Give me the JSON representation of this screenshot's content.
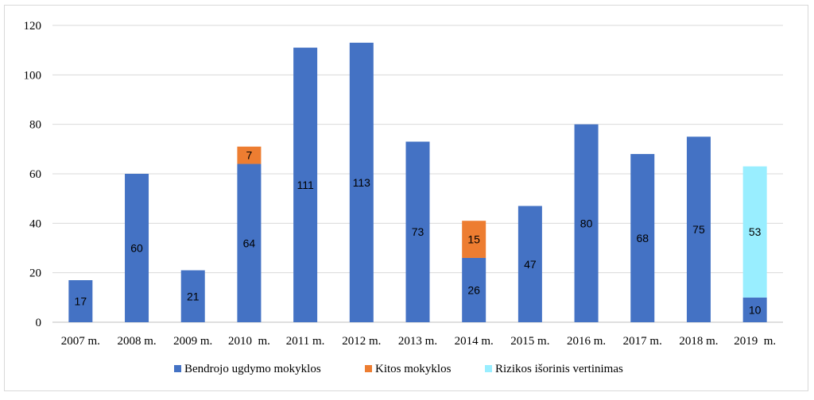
{
  "chart_data": {
    "type": "bar",
    "stacked": true,
    "title": "",
    "xlabel": "",
    "ylabel": "",
    "ylim": [
      0,
      120
    ],
    "yticks": [
      0,
      20,
      40,
      60,
      80,
      100,
      120
    ],
    "grid": true,
    "legend_position": "bottom",
    "categories": [
      "2007 m.",
      "2008 m.",
      "2009 m.",
      "2010  m.",
      "2011 m.",
      "2012 m.",
      "2013 m.",
      "2014 m.",
      "2015 m.",
      "2016 m.",
      "2017 m.",
      "2018 m.",
      "2019  m."
    ],
    "series": [
      {
        "name": "Bendrojo ugdymo mokyklos",
        "color": "#4472c4",
        "values": [
          17,
          60,
          21,
          64,
          111,
          113,
          73,
          26,
          47,
          80,
          68,
          75,
          10
        ]
      },
      {
        "name": "Kitos mokyklos",
        "color": "#ed7d31",
        "values": [
          0,
          0,
          0,
          7,
          0,
          0,
          0,
          15,
          0,
          0,
          0,
          0,
          0
        ]
      },
      {
        "name": "Rizikos išorinis vertinimas",
        "color": "#99eeff",
        "values": [
          0,
          0,
          0,
          0,
          0,
          0,
          0,
          0,
          0,
          0,
          0,
          0,
          53
        ]
      }
    ]
  }
}
